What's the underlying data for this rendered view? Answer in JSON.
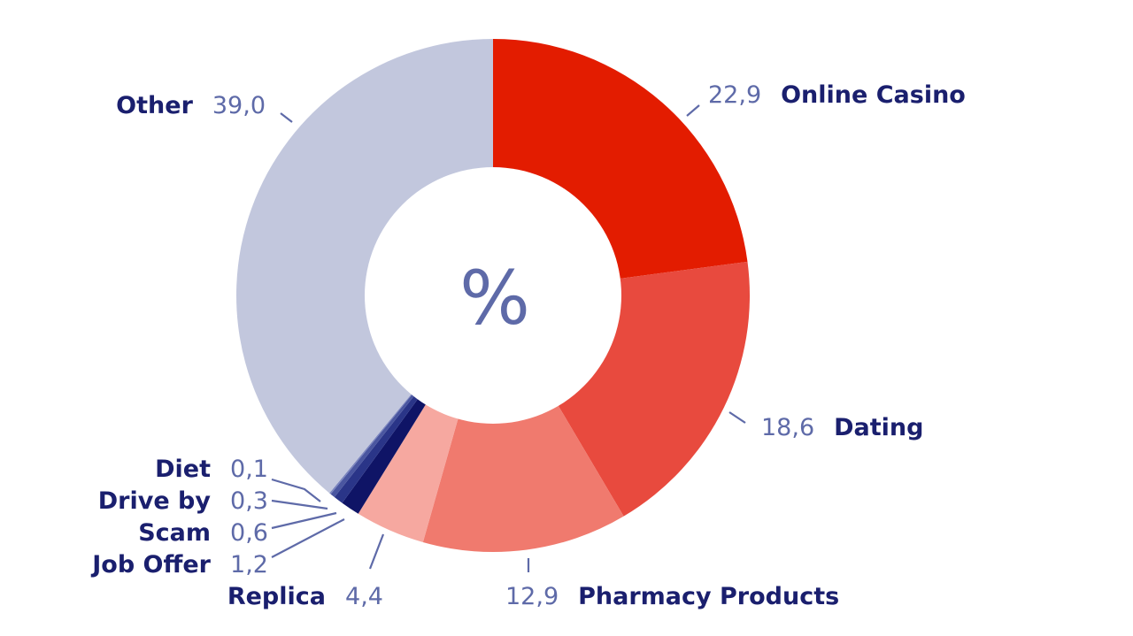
{
  "chart_data": {
    "type": "pie",
    "center_label": "%",
    "slices": [
      {
        "label": "Online Casino",
        "value_label": "22,9",
        "value": 22.9,
        "color": "#e31c00"
      },
      {
        "label": "Dating",
        "value_label": "18,6",
        "value": 18.6,
        "color": "#e84a3e"
      },
      {
        "label": "Pharmacy Products",
        "value_label": "12,9",
        "value": 12.9,
        "color": "#f07a6e"
      },
      {
        "label": "Replica",
        "value_label": "4,4",
        "value": 4.4,
        "color": "#f6a8a0"
      },
      {
        "label": "Job Offer",
        "value_label": "1,2",
        "value": 1.2,
        "color": "#0f1466"
      },
      {
        "label": "Scam",
        "value_label": "0,6",
        "value": 0.6,
        "color": "#2a3588"
      },
      {
        "label": "Drive by",
        "value_label": "0,3",
        "value": 0.3,
        "color": "#4a56a0"
      },
      {
        "label": "Diet",
        "value_label": "0,1",
        "value": 0.1,
        "color": "#7a84be"
      },
      {
        "label": "Other",
        "value_label": "39,0",
        "value": 39.0,
        "color": "#c2c7dd"
      }
    ]
  }
}
